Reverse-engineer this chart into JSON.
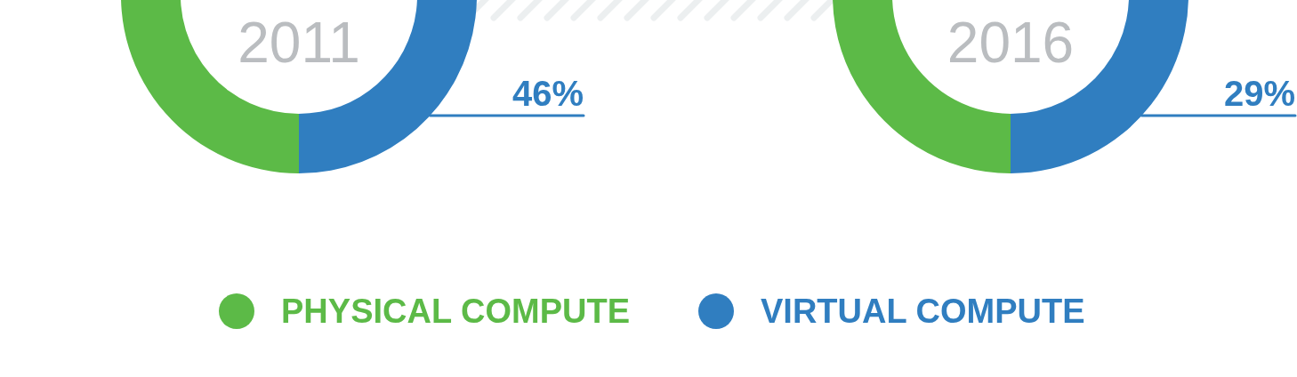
{
  "chart_data": [
    {
      "type": "donut",
      "title": "2011",
      "categories": [
        "PHYSICAL COMPUTE",
        "VIRTUAL COMPUTE"
      ],
      "values": [
        54,
        46
      ],
      "colors": [
        "#5cba47",
        "#307ec0"
      ],
      "value_labels": [
        null,
        "46%"
      ],
      "legend": "bottom"
    },
    {
      "type": "donut",
      "title": "2016",
      "categories": [
        null,
        null
      ],
      "values": [
        71,
        29
      ],
      "colors": [
        "#5cba47",
        "#307ec0"
      ],
      "value_labels": [
        null,
        "29%"
      ]
    }
  ]
}
